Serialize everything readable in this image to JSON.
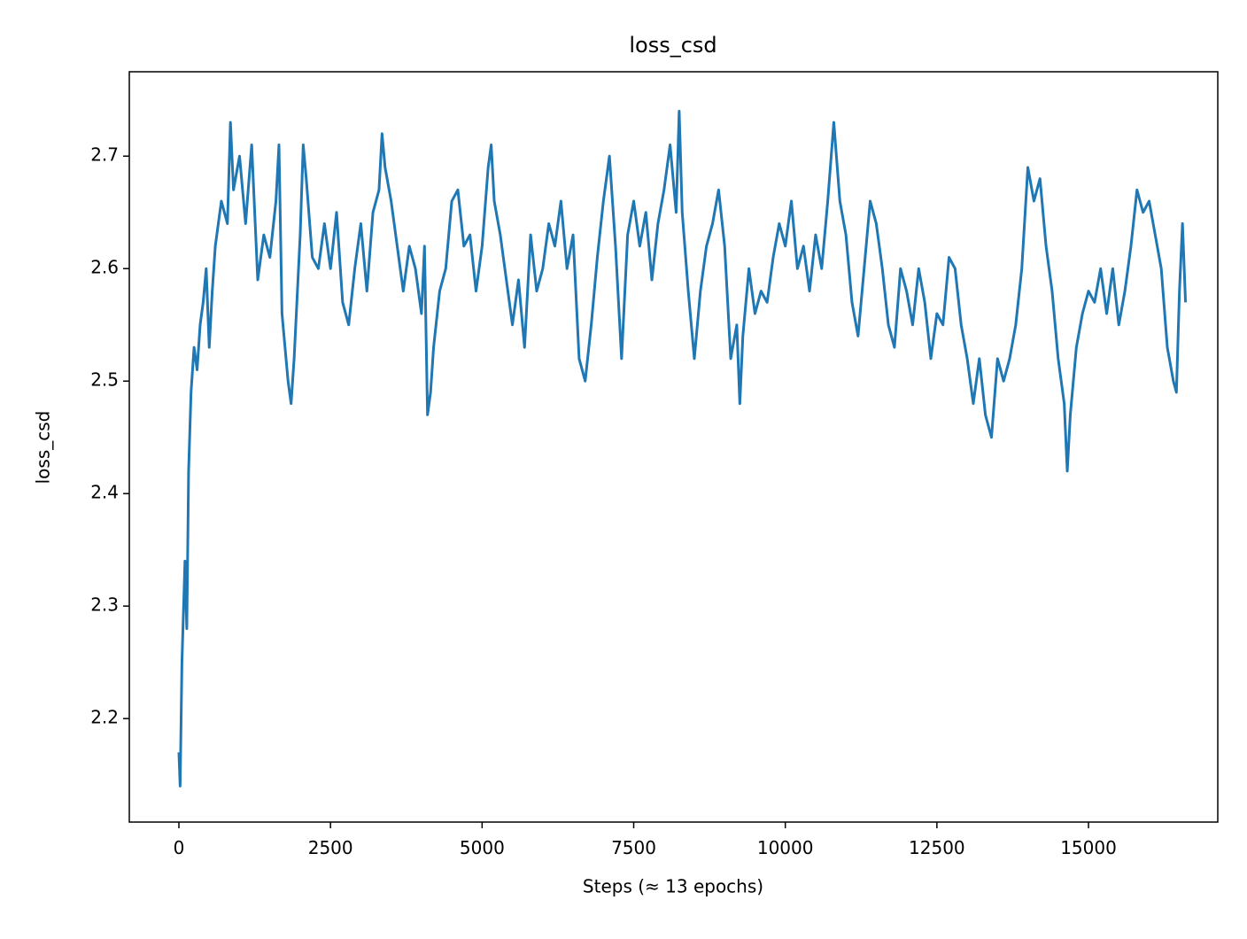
{
  "chart_data": {
    "type": "line",
    "title": "loss_csd",
    "x_label": "Steps (≈ 13 epochs)",
    "y_label": "loss_csd",
    "xlim": [
      -818,
      17132
    ],
    "ylim": [
      2.108,
      2.775
    ],
    "xticks": [
      0,
      2500,
      5000,
      7500,
      10000,
      12500,
      15000
    ],
    "yticks": [
      2.2,
      2.3,
      2.4,
      2.5,
      2.6,
      2.7
    ],
    "x": [
      0,
      20,
      50,
      100,
      130,
      160,
      200,
      250,
      300,
      350,
      400,
      450,
      500,
      550,
      600,
      700,
      800,
      850,
      900,
      1000,
      1100,
      1200,
      1300,
      1400,
      1500,
      1600,
      1650,
      1700,
      1800,
      1850,
      1900,
      2000,
      2050,
      2100,
      2200,
      2300,
      2400,
      2500,
      2600,
      2700,
      2800,
      2900,
      3000,
      3100,
      3200,
      3300,
      3350,
      3400,
      3500,
      3600,
      3700,
      3800,
      3900,
      4000,
      4050,
      4100,
      4150,
      4200,
      4300,
      4400,
      4500,
      4600,
      4700,
      4800,
      4900,
      5000,
      5100,
      5150,
      5200,
      5300,
      5400,
      5500,
      5600,
      5700,
      5800,
      5900,
      6000,
      6100,
      6200,
      6300,
      6400,
      6500,
      6600,
      6700,
      6800,
      6900,
      7000,
      7100,
      7200,
      7300,
      7400,
      7500,
      7600,
      7700,
      7800,
      7900,
      8000,
      8100,
      8200,
      8250,
      8300,
      8400,
      8500,
      8600,
      8700,
      8800,
      8900,
      9000,
      9100,
      9200,
      9250,
      9300,
      9400,
      9500,
      9600,
      9700,
      9800,
      9900,
      10000,
      10100,
      10200,
      10300,
      10400,
      10500,
      10600,
      10700,
      10800,
      10900,
      11000,
      11100,
      11200,
      11300,
      11400,
      11500,
      11600,
      11700,
      11800,
      11900,
      12000,
      12100,
      12200,
      12300,
      12400,
      12500,
      12600,
      12700,
      12800,
      12900,
      13000,
      13100,
      13200,
      13300,
      13400,
      13500,
      13600,
      13700,
      13800,
      13900,
      14000,
      14100,
      14200,
      14300,
      14400,
      14500,
      14600,
      14650,
      14700,
      14800,
      14900,
      15000,
      15100,
      15200,
      15300,
      15400,
      15500,
      15600,
      15700,
      15800,
      15900,
      16000,
      16100,
      16200,
      16300,
      16400,
      16450,
      16500,
      16550,
      16600
    ],
    "series": [
      {
        "color": "#1f77b4",
        "values": [
          2.17,
          2.14,
          2.25,
          2.34,
          2.28,
          2.42,
          2.49,
          2.53,
          2.51,
          2.55,
          2.57,
          2.6,
          2.53,
          2.58,
          2.62,
          2.66,
          2.64,
          2.73,
          2.67,
          2.7,
          2.64,
          2.71,
          2.59,
          2.63,
          2.61,
          2.66,
          2.71,
          2.56,
          2.5,
          2.48,
          2.52,
          2.63,
          2.71,
          2.68,
          2.61,
          2.6,
          2.64,
          2.6,
          2.65,
          2.57,
          2.55,
          2.6,
          2.64,
          2.58,
          2.65,
          2.67,
          2.72,
          2.69,
          2.66,
          2.62,
          2.58,
          2.62,
          2.6,
          2.56,
          2.62,
          2.47,
          2.49,
          2.53,
          2.58,
          2.6,
          2.66,
          2.67,
          2.62,
          2.63,
          2.58,
          2.62,
          2.69,
          2.71,
          2.66,
          2.63,
          2.59,
          2.55,
          2.59,
          2.53,
          2.63,
          2.58,
          2.6,
          2.64,
          2.62,
          2.66,
          2.6,
          2.63,
          2.52,
          2.5,
          2.55,
          2.61,
          2.66,
          2.7,
          2.62,
          2.52,
          2.63,
          2.66,
          2.62,
          2.65,
          2.59,
          2.64,
          2.67,
          2.71,
          2.65,
          2.74,
          2.65,
          2.58,
          2.52,
          2.58,
          2.62,
          2.64,
          2.67,
          2.62,
          2.52,
          2.55,
          2.48,
          2.54,
          2.6,
          2.56,
          2.58,
          2.57,
          2.61,
          2.64,
          2.62,
          2.66,
          2.6,
          2.62,
          2.58,
          2.63,
          2.6,
          2.66,
          2.73,
          2.66,
          2.63,
          2.57,
          2.54,
          2.6,
          2.66,
          2.64,
          2.6,
          2.55,
          2.53,
          2.6,
          2.58,
          2.55,
          2.6,
          2.57,
          2.52,
          2.56,
          2.55,
          2.61,
          2.6,
          2.55,
          2.52,
          2.48,
          2.52,
          2.47,
          2.45,
          2.52,
          2.5,
          2.52,
          2.55,
          2.6,
          2.69,
          2.66,
          2.68,
          2.62,
          2.58,
          2.52,
          2.48,
          2.42,
          2.47,
          2.53,
          2.56,
          2.58,
          2.57,
          2.6,
          2.56,
          2.6,
          2.55,
          2.58,
          2.62,
          2.67,
          2.65,
          2.66,
          2.63,
          2.6,
          2.53,
          2.5,
          2.49,
          2.58,
          2.64,
          2.57
        ]
      }
    ]
  }
}
